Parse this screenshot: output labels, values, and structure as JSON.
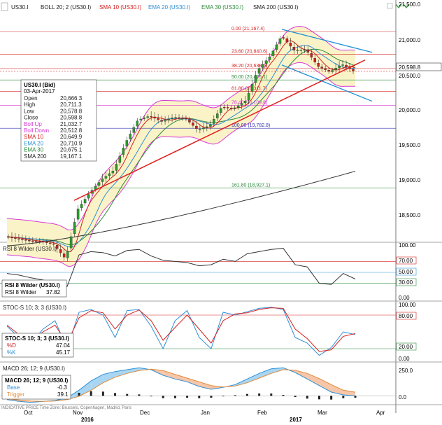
{
  "header": {
    "symbol": "US30.I",
    "indicators": [
      {
        "label": "BOLL 20; 2 (US30.I)",
        "color": "#222222"
      },
      {
        "label": "SMA 10 (US30.I)",
        "color": "#d42020"
      },
      {
        "label": "EMA 20 (US30.I)",
        "color": "#2f8fd6"
      },
      {
        "label": "EMA 30 (US30.I)",
        "color": "#2a8a3a"
      },
      {
        "label": "SMA 200 (US30.I)",
        "color": "#222222"
      }
    ]
  },
  "info_box": {
    "title": "US30.I (Bid)",
    "date": "03-Apr-2017",
    "rows": [
      {
        "label": "Open",
        "value": "20,666.3",
        "color": "#222222"
      },
      {
        "label": "High",
        "value": "20,711.3",
        "color": "#222222"
      },
      {
        "label": "Low",
        "value": "20,578.8",
        "color": "#222222"
      },
      {
        "label": "Close",
        "value": "20,598.8",
        "color": "#222222"
      },
      {
        "label": "Boll Up",
        "value": "21,032.7",
        "color": "#d63ad6"
      },
      {
        "label": "Boll Down",
        "value": "20,512.8",
        "color": "#d63ad6"
      },
      {
        "label": "SMA 10",
        "value": "20,649.9",
        "color": "#d42020"
      },
      {
        "label": "EMA 20",
        "value": "20,710.9",
        "color": "#2f8fd6"
      },
      {
        "label": "EMA 30",
        "value": "20,675.1",
        "color": "#2a8a3a"
      },
      {
        "label": "SMA 200",
        "value": "19,167.1",
        "color": "#222222"
      }
    ]
  },
  "fib_labels": [
    "0.00 (21,167.4)",
    "23.60 (20,840.6)",
    "38.20 (20,638.5)",
    "50.00 (20,475.1)",
    "61.80 (20,311.7)",
    "78.40 (20,109.6)",
    "100.00 (19,782.8)",
    "161.80 (18,927.1)"
  ],
  "price_axis": {
    "ticks": [
      "21,500.0",
      "21,000.0",
      "20,598.8",
      "20,500.0",
      "20,000.0",
      "19,500.0",
      "19,000.0",
      "18,500.0"
    ]
  },
  "rsi_panel": {
    "header": "RSI 8 Wilder (US30.I)",
    "box_title": "RSI 8 Wilder (US30.I)",
    "box_row_label": "RSI 8 Wilder",
    "box_row_value": "37.82",
    "ticks": [
      "100.00",
      "70.00",
      "50.00",
      "30.00",
      "0.00"
    ]
  },
  "stoc_panel": {
    "header": "STOC-S 10; 3; 3 (US30.I)",
    "box_title": "STOC-S 10; 3; 3 (US30.I)",
    "rows": [
      {
        "label": "%D",
        "value": "47.04"
      },
      {
        "label": "%K",
        "value": "45.17"
      }
    ],
    "ticks": [
      "100.00",
      "80.00",
      "20.00",
      "0.00"
    ]
  },
  "macd_panel": {
    "header": "MACD 26; 12; 9 (US30.I)",
    "box_title": "MACD 26; 12; 9 (US30.I)",
    "rows": [
      {
        "label": "Base",
        "value": "-0.3"
      },
      {
        "label": "Trigger",
        "value": "39.1"
      }
    ],
    "ticks": [
      "250.0",
      "0.0"
    ]
  },
  "footer_note": "INDICATIVE PRICE   Time Zone: Brussels, Copenhagen, Madrid, Paris",
  "x_axis": {
    "months": [
      "Oct",
      "Nov",
      "Dec",
      "Jan",
      "Feb",
      "Mar",
      "Apr"
    ],
    "years": [
      "2016",
      "2017"
    ]
  },
  "chart_data": {
    "type": "candlestick",
    "title": "US30.I",
    "y_range": [
      18150,
      21620
    ],
    "last_close": 20598.8,
    "fibonacci_levels": [
      {
        "ratio": 0.0,
        "value": 21167.4
      },
      {
        "ratio": 23.6,
        "value": 20840.6
      },
      {
        "ratio": 38.2,
        "value": 20638.5
      },
      {
        "ratio": 50.0,
        "value": 20475.1
      },
      {
        "ratio": 61.8,
        "value": 20311.7
      },
      {
        "ratio": 78.4,
        "value": 20109.6
      },
      {
        "ratio": 100.0,
        "value": 19782.8
      },
      {
        "ratio": 161.8,
        "value": 18927.1
      }
    ],
    "close_series": {
      "dates": [
        "Oct-3",
        "Oct-10",
        "Oct-17",
        "Oct-24",
        "Oct-31",
        "Nov-4",
        "Nov-9",
        "Nov-14",
        "Nov-21",
        "Nov-28",
        "Dec-5",
        "Dec-12",
        "Dec-19",
        "Dec-27",
        "Jan-3",
        "Jan-9",
        "Jan-17",
        "Jan-23",
        "Jan-30",
        "Feb-6",
        "Feb-13",
        "Feb-21",
        "Feb-27",
        "Mar-1",
        "Mar-6",
        "Mar-13",
        "Mar-20",
        "Mar-24",
        "Mar-29",
        "Apr-3"
      ],
      "values": [
        18230,
        18200,
        18170,
        18160,
        18120,
        17910,
        18620,
        18860,
        19050,
        19180,
        19580,
        19900,
        19960,
        19880,
        19940,
        19920,
        19760,
        19820,
        20090,
        20060,
        20180,
        20620,
        20810,
        21110,
        20900,
        20910,
        20670,
        20590,
        20700,
        20598.8
      ]
    },
    "rsi": {
      "values": [
        48,
        45,
        40,
        36,
        30,
        24,
        82,
        88,
        86,
        80,
        90,
        92,
        80,
        72,
        70,
        68,
        62,
        64,
        74,
        70,
        84,
        88,
        92,
        94,
        64,
        60,
        30,
        28,
        48,
        37.82
      ],
      "range": [
        0,
        100
      ]
    },
    "stochastic": {
      "k": [
        60,
        40,
        30,
        55,
        70,
        20,
        85,
        90,
        80,
        40,
        88,
        90,
        60,
        20,
        70,
        88,
        40,
        20,
        85,
        80,
        86,
        92,
        94,
        90,
        40,
        30,
        8,
        22,
        50,
        45.17
      ],
      "d": [
        62,
        45,
        35,
        50,
        62,
        30,
        75,
        88,
        84,
        55,
        80,
        89,
        70,
        35,
        58,
        80,
        55,
        30,
        70,
        82,
        84,
        90,
        93,
        92,
        55,
        38,
        15,
        18,
        42,
        47.04
      ],
      "range": [
        0,
        100
      ]
    },
    "macd": {
      "base": [
        -40,
        -60,
        -70,
        -60,
        -50,
        -20,
        60,
        160,
        230,
        260,
        280,
        300,
        280,
        220,
        180,
        150,
        100,
        70,
        90,
        120,
        180,
        240,
        290,
        300,
        250,
        180,
        110,
        40,
        10,
        -0.3
      ],
      "trigger": [
        -30,
        -45,
        -55,
        -60,
        -55,
        -40,
        -5,
        60,
        140,
        200,
        240,
        270,
        285,
        270,
        230,
        190,
        150,
        110,
        95,
        105,
        140,
        190,
        240,
        280,
        275,
        240,
        185,
        120,
        60,
        39.1
      ],
      "range": [
        -80,
        340
      ]
    }
  }
}
